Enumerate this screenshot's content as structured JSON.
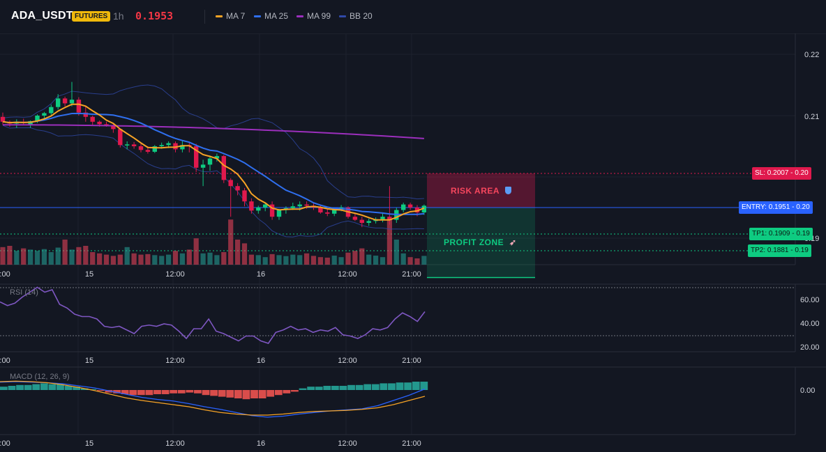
{
  "header": {
    "symbol": "ADA_USDT",
    "badge": "FUTURES",
    "timeframe": "1h",
    "price": "0.1953",
    "indicators": [
      {
        "label": "MA 7",
        "color": "#f7a325"
      },
      {
        "label": "MA 25",
        "color": "#2f6fef"
      },
      {
        "label": "MA 99",
        "color": "#9c2fbd"
      },
      {
        "label": "BB 20",
        "color": "#3049a8"
      }
    ]
  },
  "colors": {
    "up": "#26a69a",
    "up_bright": "#0ecb81",
    "down": "#f6465d",
    "down_deep": "#e0194d",
    "risk": "#e0194d",
    "profit": "#0ecb81",
    "entry": "#2962ff"
  },
  "levels": {
    "sl_label": "SL: 0.2007",
    "sl_value": "0.20",
    "entry_label": "ENTRY: 0.1951",
    "entry_value": "0.20",
    "tp1_label": "TP1: 0.1909",
    "tp1_value": "0.19",
    "tp2_label": "TP2: 0.1881",
    "tp2_value": "0.19"
  },
  "zones": {
    "risk_label": "RISK AREA",
    "risk_icon": "shield-icon",
    "profit_label": "PROFIT ZONE",
    "profit_icon": "rocket-icon"
  },
  "price_axis": {
    "ticks": [
      "0.22",
      "0.21",
      "0.20",
      "0.19"
    ]
  },
  "time_axis": {
    "ticks": [
      "2:00",
      "15",
      "12:00",
      "16",
      "12:00",
      "21:00"
    ]
  },
  "rsi": {
    "title": "RSI (14)",
    "ticks": [
      "60.00",
      "40.00",
      "20.00"
    ],
    "overbought": 70,
    "oversold": 30,
    "values": [
      58,
      55,
      57,
      62,
      66,
      70,
      66,
      68,
      56,
      53,
      48,
      46,
      46,
      44,
      38,
      37,
      38,
      35,
      32,
      38,
      39,
      38,
      40,
      39,
      34,
      28,
      36,
      36,
      44,
      34,
      32,
      29,
      26,
      30,
      30,
      26,
      24,
      33,
      35,
      38,
      35,
      36,
      33,
      35,
      34,
      37,
      31,
      30,
      28,
      31,
      36,
      35,
      37,
      44,
      49,
      46,
      42,
      50
    ]
  },
  "macd": {
    "title": "MACD (12, 26, 9)",
    "ticks": [
      "0.00"
    ],
    "hist": [
      0.0004,
      0.0005,
      0.0006,
      0.0006,
      0.0007,
      0.0008,
      0.0007,
      0.0007,
      0.0005,
      0.0004,
      0.0002,
      0.0001,
      -0.0001,
      -0.0003,
      -0.0004,
      -0.0005,
      -0.0006,
      -0.0006,
      -0.0006,
      -0.0005,
      -0.0005,
      -0.0004,
      -0.0004,
      -0.0003,
      -0.0004,
      -0.0006,
      -0.0007,
      -0.0008,
      -0.0009,
      -0.001,
      -0.0011,
      -0.001,
      -0.001,
      -0.0008,
      -0.0006,
      -0.0004,
      -0.0002,
      0.0002,
      0.0004,
      0.0004,
      0.0005,
      0.0005,
      0.0005,
      0.0006,
      0.0006,
      0.0007,
      0.0007,
      0.0008,
      0.0008,
      0.0009,
      0.0009,
      0.001,
      0.001
    ],
    "macd_line": [
      0.0015,
      0.0016,
      0.0015,
      0.0014,
      0.0012,
      0.0008,
      0.0004,
      -0.0002,
      -0.0008,
      -0.0014,
      -0.0018,
      -0.0021,
      -0.0026,
      -0.0032,
      -0.0037,
      -0.0043,
      -0.0049,
      -0.0052,
      -0.005,
      -0.0046,
      -0.0043,
      -0.004,
      -0.0038,
      -0.0036,
      -0.003,
      -0.002,
      -0.001,
      0.0002
    ],
    "signal_line": [
      0.0016,
      0.0017,
      0.0016,
      0.0014,
      0.001,
      0.0005,
      -0.0001,
      -0.0008,
      -0.0015,
      -0.002,
      -0.0024,
      -0.0028,
      -0.0032,
      -0.0038,
      -0.0043,
      -0.0046,
      -0.0048,
      -0.0048,
      -0.0046,
      -0.0043,
      -0.0041,
      -0.004,
      -0.0039,
      -0.0037,
      -0.0034,
      -0.0028,
      -0.002,
      -0.0012
    ]
  },
  "candles": [
    [
      0.2098,
      0.2105,
      0.2085,
      0.209
    ],
    [
      0.209,
      0.2092,
      0.2082,
      0.2087
    ],
    [
      0.2087,
      0.2094,
      0.208,
      0.209
    ],
    [
      0.209,
      0.2095,
      0.2085,
      0.2088
    ],
    [
      0.2085,
      0.2092,
      0.208,
      0.2091
    ],
    [
      0.2091,
      0.2102,
      0.2088,
      0.21
    ],
    [
      0.21,
      0.2106,
      0.2094,
      0.2104
    ],
    [
      0.2104,
      0.2118,
      0.21,
      0.2114
    ],
    [
      0.2114,
      0.2135,
      0.211,
      0.2128
    ],
    [
      0.2128,
      0.2131,
      0.2115,
      0.212
    ],
    [
      0.212,
      0.2155,
      0.2115,
      0.2126
    ],
    [
      0.2126,
      0.213,
      0.21,
      0.2105
    ],
    [
      0.2105,
      0.2115,
      0.209,
      0.2098
    ],
    [
      0.2098,
      0.21,
      0.2085,
      0.209
    ],
    [
      0.209,
      0.2092,
      0.2082,
      0.2086
    ],
    [
      0.2086,
      0.209,
      0.2082,
      0.2084
    ],
    [
      0.2084,
      0.2086,
      0.2072,
      0.2078
    ],
    [
      0.2078,
      0.2079,
      0.2048,
      0.2052
    ],
    [
      0.2052,
      0.2058,
      0.2045,
      0.2053
    ],
    [
      0.2053,
      0.2057,
      0.2046,
      0.205
    ],
    [
      0.205,
      0.2054,
      0.204,
      0.2044
    ],
    [
      0.2044,
      0.205,
      0.2038,
      0.2041
    ],
    [
      0.2041,
      0.2052,
      0.2039,
      0.205
    ],
    [
      0.205,
      0.2056,
      0.2046,
      0.2052
    ],
    [
      0.2052,
      0.2058,
      0.2047,
      0.2055
    ],
    [
      0.2055,
      0.2058,
      0.204,
      0.2045
    ],
    [
      0.2045,
      0.206,
      0.204,
      0.2052
    ],
    [
      0.2052,
      0.2057,
      0.204,
      0.205
    ],
    [
      0.205,
      0.2054,
      0.2008,
      0.2015
    ],
    [
      0.2015,
      0.2028,
      0.1985,
      0.202
    ],
    [
      0.202,
      0.2035,
      0.201,
      0.203
    ],
    [
      0.203,
      0.2038,
      0.2025,
      0.2034
    ],
    [
      0.2034,
      0.2036,
      0.199,
      0.1995
    ],
    [
      0.1995,
      0.1998,
      0.1935,
      0.1985
    ],
    [
      0.1985,
      0.199,
      0.197,
      0.1978
    ],
    [
      0.1978,
      0.1982,
      0.1952,
      0.196
    ],
    [
      0.196,
      0.1965,
      0.194,
      0.1945
    ],
    [
      0.1945,
      0.1953,
      0.194,
      0.195
    ],
    [
      0.195,
      0.1958,
      0.1944,
      0.1955
    ],
    [
      0.1955,
      0.196,
      0.193,
      0.1935
    ],
    [
      0.1935,
      0.1948,
      0.193,
      0.1946
    ],
    [
      0.1946,
      0.1952,
      0.194,
      0.1949
    ],
    [
      0.1949,
      0.1958,
      0.1946,
      0.1952
    ],
    [
      0.1952,
      0.196,
      0.1945,
      0.1955
    ],
    [
      0.1955,
      0.196,
      0.1948,
      0.1953
    ],
    [
      0.1953,
      0.1958,
      0.1946,
      0.195
    ],
    [
      0.195,
      0.1955,
      0.194,
      0.1942
    ],
    [
      0.1942,
      0.1948,
      0.1936,
      0.194
    ],
    [
      0.194,
      0.195,
      0.1936,
      0.1948
    ],
    [
      0.1948,
      0.1954,
      0.1944,
      0.195
    ],
    [
      0.195,
      0.1952,
      0.1932,
      0.1935
    ],
    [
      0.1935,
      0.194,
      0.1928,
      0.193
    ],
    [
      0.193,
      0.1935,
      0.1918,
      0.1925
    ],
    [
      0.1925,
      0.1932,
      0.192,
      0.1928
    ],
    [
      0.1928,
      0.1934,
      0.1924,
      0.1931
    ],
    [
      0.1931,
      0.194,
      0.1926,
      0.1935
    ],
    [
      0.1935,
      0.1985,
      0.1922,
      0.193
    ],
    [
      0.193,
      0.195,
      0.1925,
      0.1946
    ],
    [
      0.1946,
      0.1958,
      0.1942,
      0.1955
    ],
    [
      0.1955,
      0.1958,
      0.1946,
      0.195
    ],
    [
      0.195,
      0.1954,
      0.1936,
      0.1942
    ],
    [
      0.1942,
      0.1955,
      0.1938,
      0.1953
    ]
  ],
  "volumes": [
    0.7,
    0.75,
    0.55,
    0.65,
    0.6,
    0.55,
    0.62,
    0.5,
    0.68,
    1.0,
    0.6,
    0.7,
    0.75,
    0.5,
    0.45,
    0.4,
    0.35,
    0.4,
    0.7,
    0.45,
    0.4,
    0.42,
    0.38,
    0.35,
    0.4,
    0.55,
    0.45,
    0.6,
    1.05,
    0.45,
    0.48,
    0.38,
    0.5,
    1.8,
    1.0,
    0.85,
    0.4,
    0.38,
    0.3,
    0.42,
    0.38,
    0.34,
    0.4,
    0.38,
    0.45,
    0.35,
    0.3,
    0.28,
    0.36,
    0.3,
    0.48,
    0.55,
    0.65,
    0.4,
    0.36,
    0.3,
    1.8,
    1.0,
    0.45,
    0.3,
    0.25,
    0.35
  ]
}
